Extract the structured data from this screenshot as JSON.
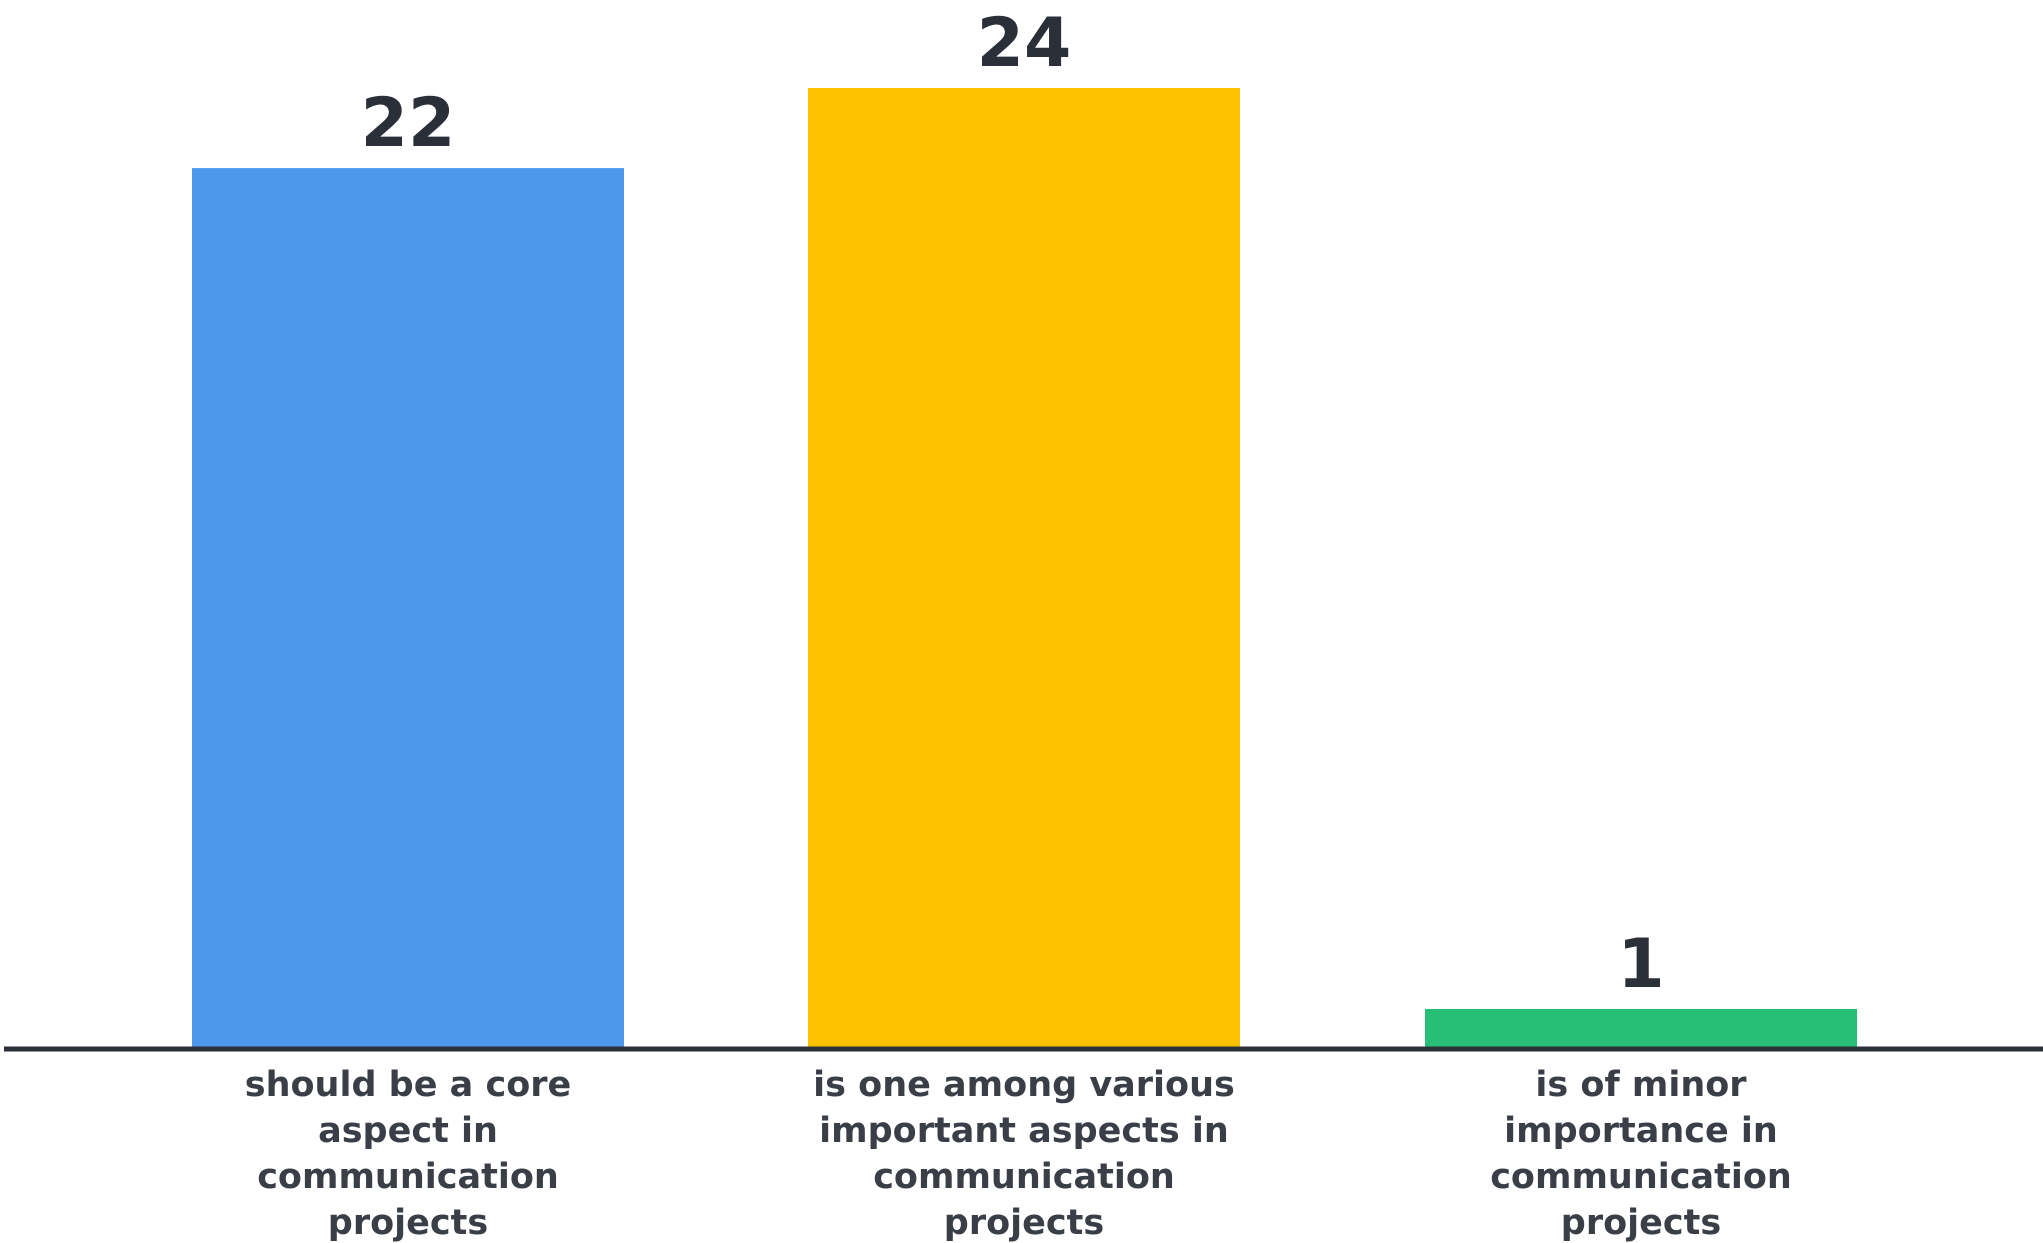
{
  "chart_data": {
    "type": "bar",
    "categories": [
      "should be a core aspect in communication projects",
      "is one among various important aspects in communication projects",
      "is of minor importance in communication projects"
    ],
    "category_lines": [
      [
        "should be a core",
        "aspect in",
        "communication",
        "projects"
      ],
      [
        "is one among various",
        "important aspects in",
        "communication",
        "projects"
      ],
      [
        "is of minor",
        "importance in",
        "communication",
        "projects"
      ]
    ],
    "values": [
      22,
      24,
      1
    ],
    "value_labels": [
      "22",
      "24",
      "1"
    ],
    "colors": [
      "#4E98EC",
      "#FCC200",
      "#26BF75"
    ],
    "axis_color": "#2b2f38",
    "ylim": [
      0,
      24
    ],
    "grid": false,
    "legend": "none"
  }
}
